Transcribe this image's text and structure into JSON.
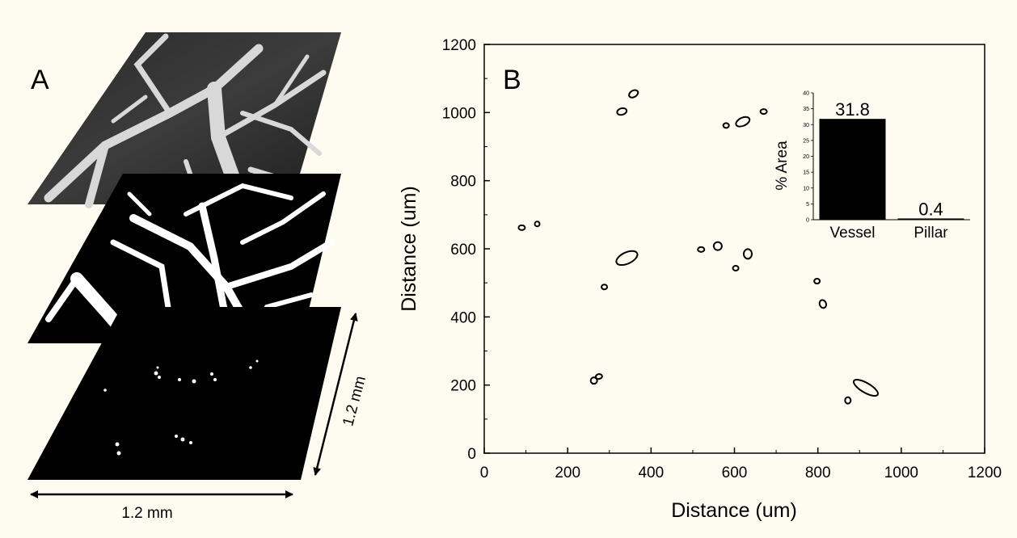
{
  "panel_a": {
    "letter": "A",
    "dim_bottom": "1.2 mm",
    "dim_side": "1.2 mm"
  },
  "chart_data": [
    {
      "type": "scatter",
      "panel": "B",
      "title": "",
      "xlabel": "Distance (um)",
      "ylabel": "Distance (um)",
      "xlim": [
        0,
        1200
      ],
      "ylim": [
        0,
        1200
      ],
      "xticks": [
        0,
        200,
        400,
        600,
        800,
        1000,
        1200
      ],
      "yticks": [
        0,
        200,
        400,
        600,
        800,
        1000,
        1200
      ],
      "grid": false,
      "points": [
        {
          "x": 90,
          "y": 662
        },
        {
          "x": 127,
          "y": 673
        },
        {
          "x": 330,
          "y": 1003
        },
        {
          "x": 358,
          "y": 1055
        },
        {
          "x": 342,
          "y": 573
        },
        {
          "x": 288,
          "y": 488
        },
        {
          "x": 263,
          "y": 213
        },
        {
          "x": 275,
          "y": 225
        },
        {
          "x": 520,
          "y": 598
        },
        {
          "x": 560,
          "y": 608
        },
        {
          "x": 580,
          "y": 962
        },
        {
          "x": 620,
          "y": 973
        },
        {
          "x": 670,
          "y": 1003
        },
        {
          "x": 603,
          "y": 543
        },
        {
          "x": 632,
          "y": 585
        },
        {
          "x": 798,
          "y": 505
        },
        {
          "x": 812,
          "y": 438
        },
        {
          "x": 915,
          "y": 192
        },
        {
          "x": 872,
          "y": 155
        }
      ]
    },
    {
      "type": "bar",
      "panel": "B-inset",
      "categories": [
        "Vessel",
        "Pillar"
      ],
      "values": [
        31.8,
        0.4
      ],
      "value_labels": [
        "31.8",
        "0.4"
      ],
      "ylabel": "% Area",
      "ylim": [
        0,
        40
      ],
      "yticks": [
        0,
        5,
        10,
        15,
        20,
        25,
        30,
        35,
        40
      ]
    }
  ]
}
